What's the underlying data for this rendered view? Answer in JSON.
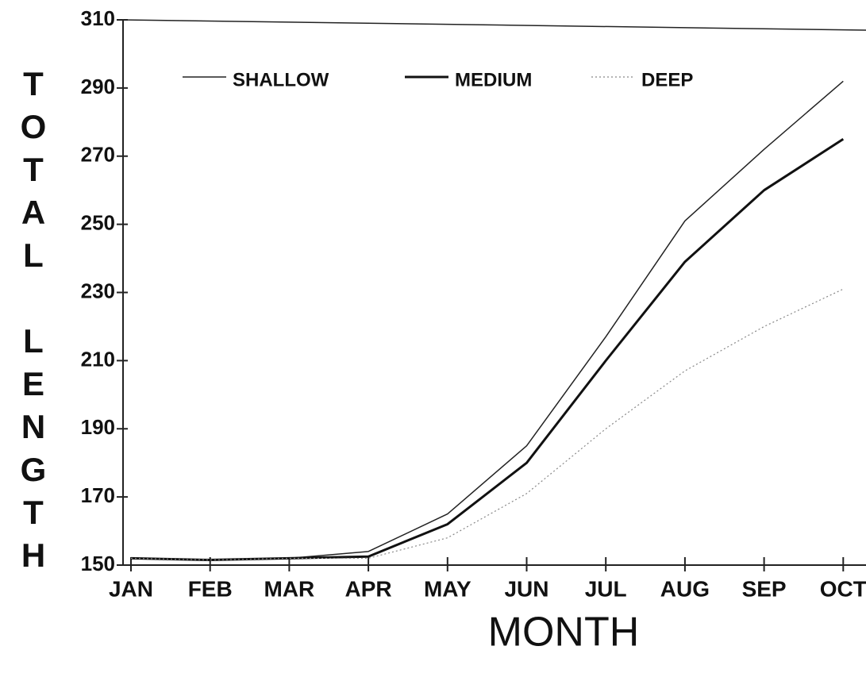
{
  "chart_data": {
    "type": "line",
    "x_label": "MONTH",
    "y_label": "TOTAL LENGTH",
    "categories": [
      "JAN",
      "FEB",
      "MAR",
      "APR",
      "MAY",
      "JUN",
      "JUL",
      "AUG",
      "SEP",
      "OCT"
    ],
    "series": [
      {
        "name": "SHALLOW",
        "color": "#222222",
        "width": 1.5,
        "style": "solid",
        "values": [
          152,
          151.5,
          152,
          154,
          165,
          185,
          217,
          251,
          272,
          292
        ]
      },
      {
        "name": "MEDIUM",
        "color": "#111111",
        "width": 3,
        "style": "solid",
        "values": [
          152,
          151.5,
          152,
          152.5,
          162,
          180,
          210,
          239,
          260,
          275
        ]
      },
      {
        "name": "DEEP",
        "color": "#888888",
        "width": 1.2,
        "style": "dotted",
        "values": [
          152,
          151.5,
          152,
          152,
          158,
          171,
          190,
          207,
          220,
          231
        ]
      }
    ],
    "ylim": [
      150,
      310
    ],
    "yticks": [
      150,
      170,
      190,
      210,
      230,
      250,
      270,
      290,
      310
    ],
    "grid": false,
    "legend": "top"
  }
}
